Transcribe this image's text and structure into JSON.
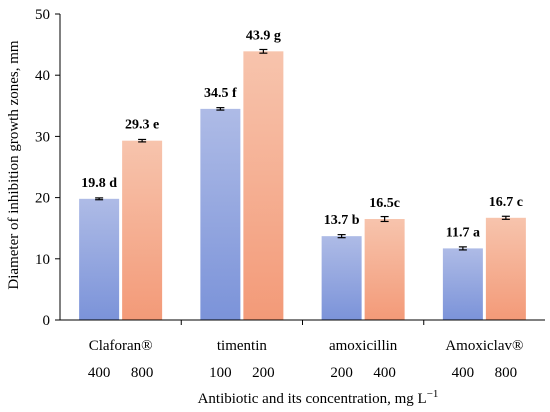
{
  "chart_data": {
    "type": "bar",
    "xlabel": "Antibiotic and its concentration, mg L",
    "xlabel_sup": "−1",
    "ylabel": "Diameter of inhibition growth zones, mm",
    "ylim": [
      0,
      50
    ],
    "yticks": [
      "0",
      "10",
      "20",
      "30",
      "40",
      "50"
    ],
    "ytick_values": [
      0,
      10,
      20,
      30,
      40,
      50
    ],
    "grid": false,
    "legend": "none",
    "groups": [
      {
        "name": "Claforan®",
        "bars": [
          {
            "concentration": "400",
            "value": 19.8,
            "error": 0.15,
            "label": "19.8 d",
            "series": 0
          },
          {
            "concentration": "800",
            "value": 29.3,
            "error": 0.2,
            "label": "29.3 e",
            "series": 1
          }
        ]
      },
      {
        "name": "timentin",
        "bars": [
          {
            "concentration": "100",
            "value": 34.5,
            "error": 0.2,
            "label": "34.5 f",
            "series": 0
          },
          {
            "concentration": "200",
            "value": 43.9,
            "error": 0.3,
            "label": "43.9 g",
            "series": 1
          }
        ]
      },
      {
        "name": "amoxicillin",
        "bars": [
          {
            "concentration": "200",
            "value": 13.7,
            "error": 0.25,
            "label": "13.7 b",
            "series": 0
          },
          {
            "concentration": "400",
            "value": 16.5,
            "error": 0.4,
            "label": "16.5c",
            "series": 1
          }
        ]
      },
      {
        "name": "Amoxiclav®",
        "bars": [
          {
            "concentration": "400",
            "value": 11.7,
            "error": 0.25,
            "label": "11.7 a",
            "series": 0
          },
          {
            "concentration": "800",
            "value": 16.7,
            "error": 0.25,
            "label": "16.7 c",
            "series": 1
          }
        ]
      }
    ],
    "colors": {
      "series0_top": "#aebbe6",
      "series0_bottom": "#7b93d9",
      "series1_top": "#f7c4ad",
      "series1_bottom": "#f39a78"
    }
  }
}
